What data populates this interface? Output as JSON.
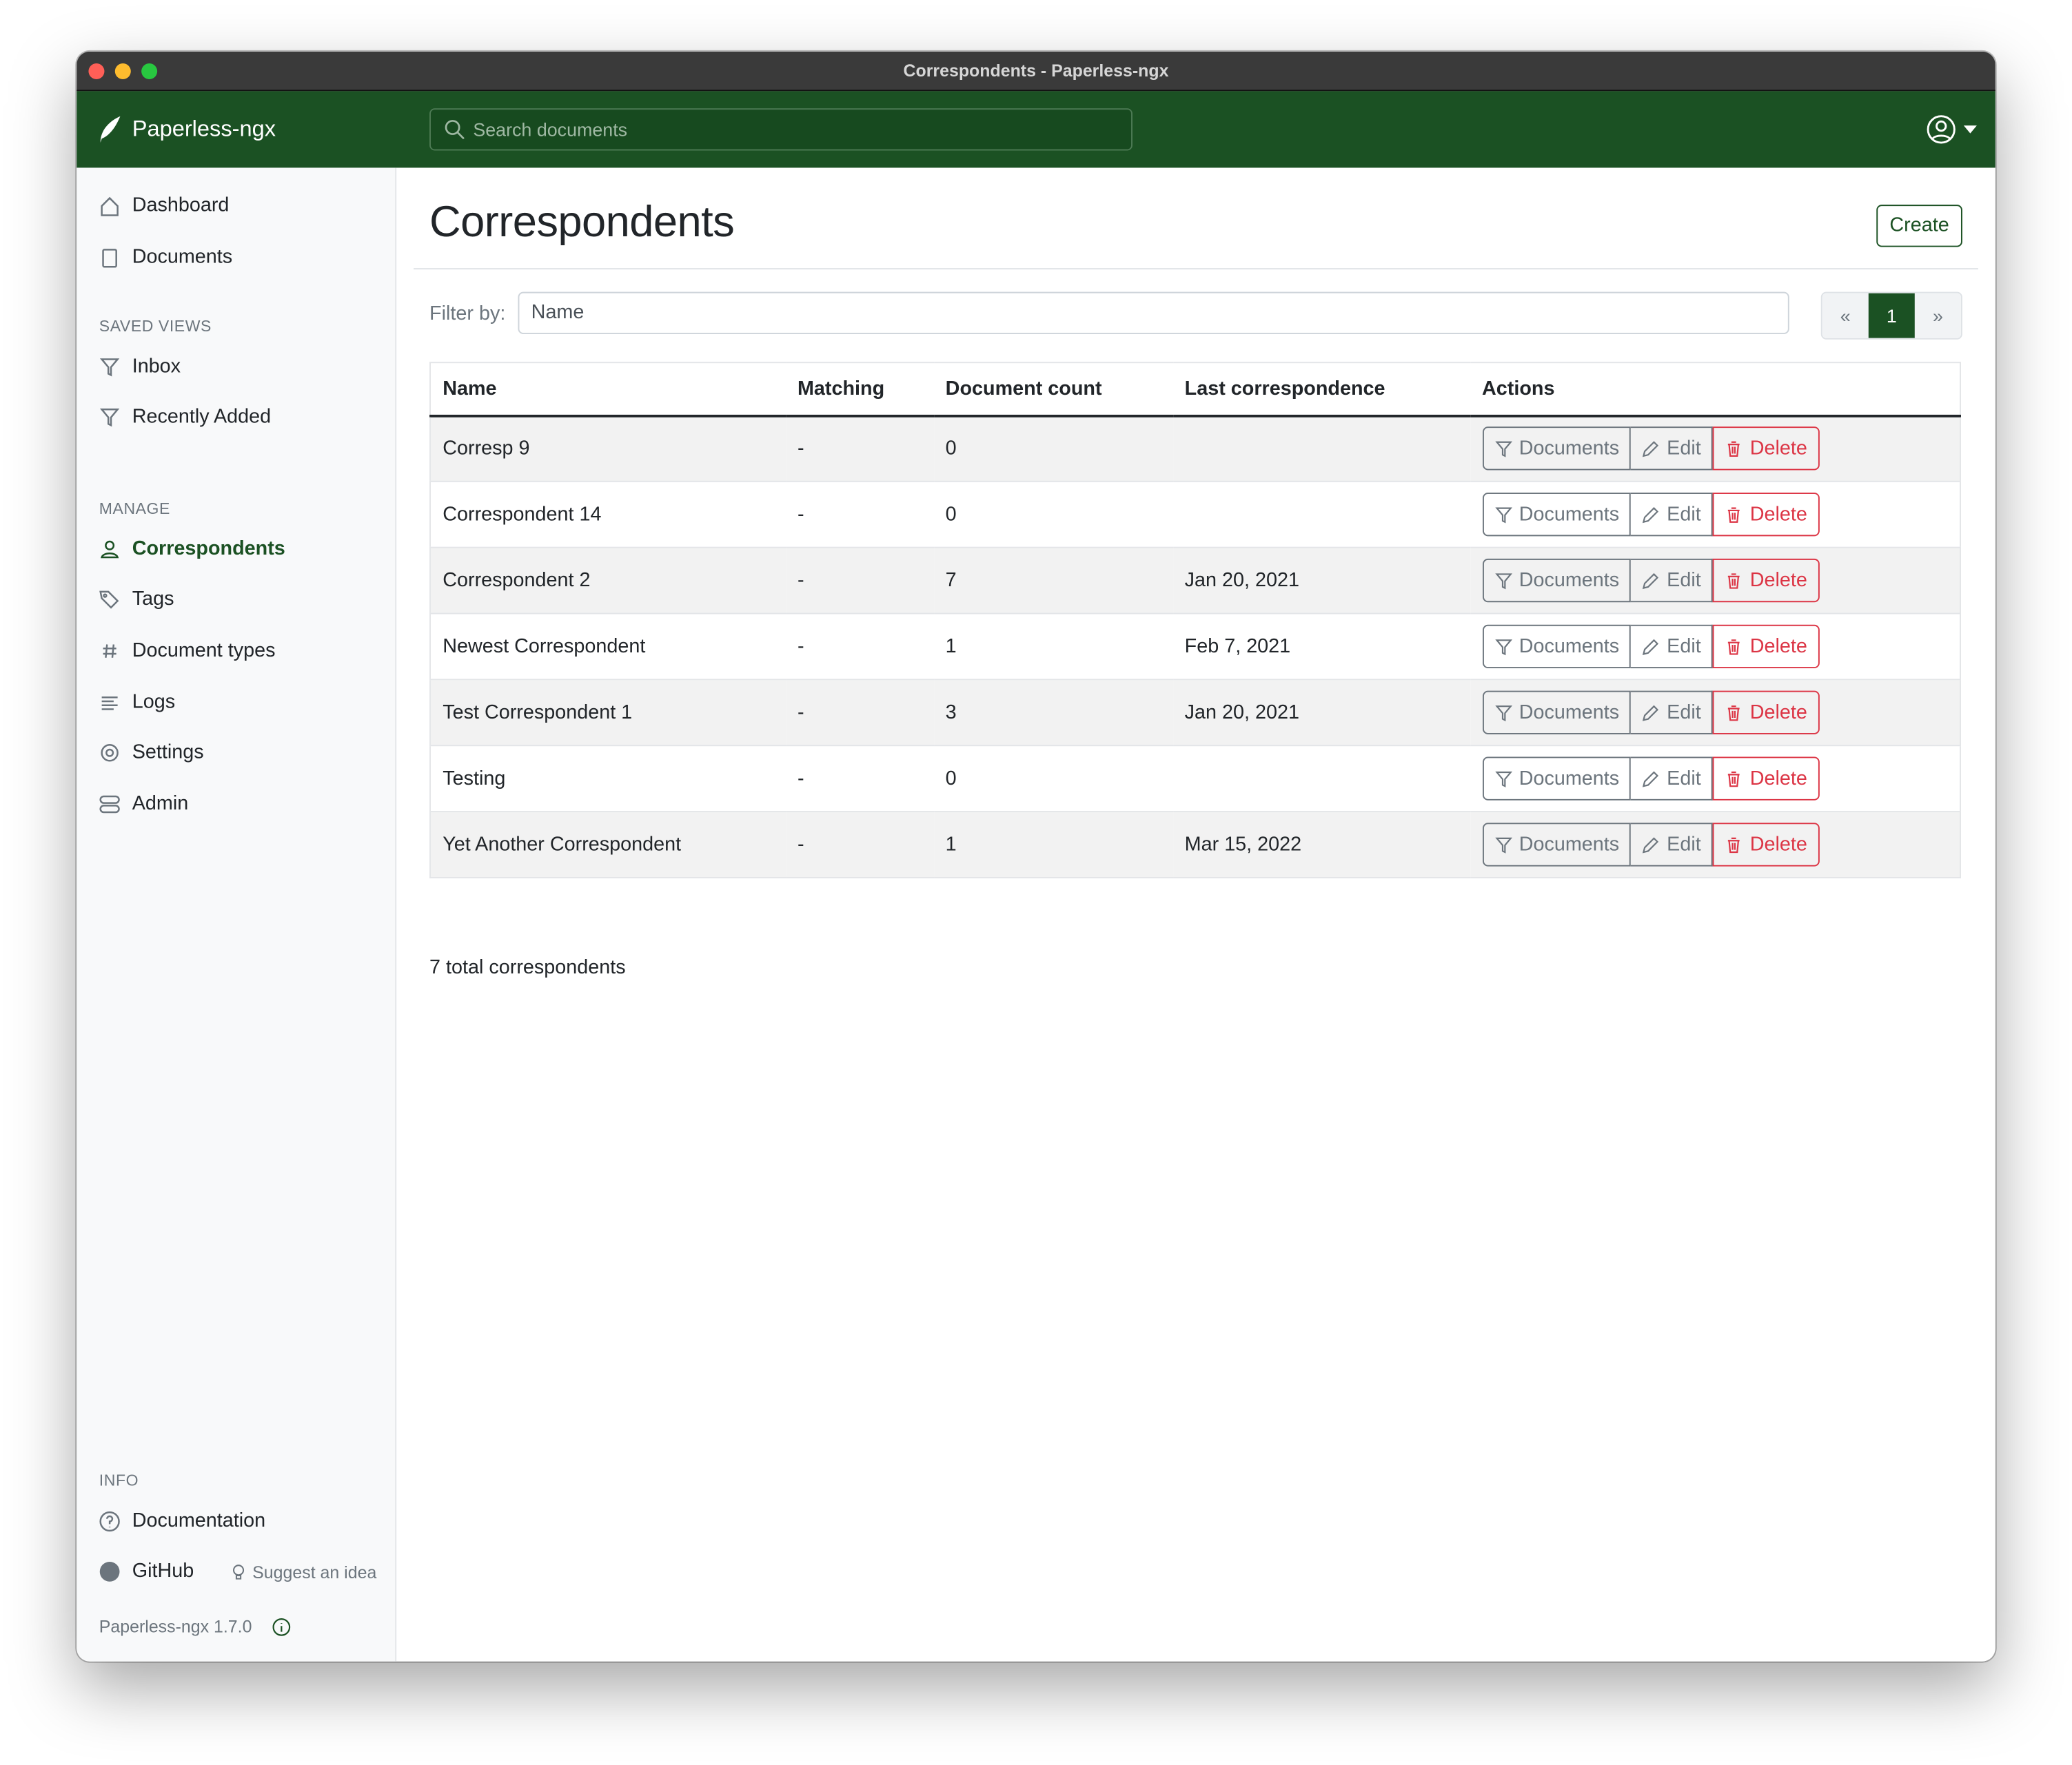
{
  "window": {
    "title": "Correspondents - Paperless-ngx"
  },
  "navbar": {
    "brand": "Paperless-ngx",
    "search_placeholder": "Search documents",
    "accent": "#1b5123"
  },
  "sidebar": {
    "main": [
      {
        "label": "Dashboard",
        "icon": "house-icon"
      },
      {
        "label": "Documents",
        "icon": "files-icon"
      }
    ],
    "saved_views_header": "SAVED VIEWS",
    "saved_views": [
      {
        "label": "Inbox",
        "icon": "funnel-icon"
      },
      {
        "label": "Recently Added",
        "icon": "funnel-icon"
      }
    ],
    "manage_header": "MANAGE",
    "manage": [
      {
        "label": "Correspondents",
        "icon": "person-icon",
        "active": true
      },
      {
        "label": "Tags",
        "icon": "tags-icon"
      },
      {
        "label": "Document types",
        "icon": "hash-icon"
      },
      {
        "label": "Logs",
        "icon": "text-left-icon"
      },
      {
        "label": "Settings",
        "icon": "gear-icon"
      },
      {
        "label": "Admin",
        "icon": "toggles-icon"
      }
    ],
    "info_header": "INFO",
    "documentation": "Documentation",
    "github": "GitHub",
    "suggest": "Suggest an idea",
    "version": "Paperless-ngx 1.7.0"
  },
  "main": {
    "title": "Correspondents",
    "create_label": "Create",
    "filter_label": "Filter by:",
    "filter_placeholder": "Name",
    "pager": {
      "prev": "«",
      "current": "1",
      "next": "»"
    },
    "columns": [
      "Name",
      "Matching",
      "Document count",
      "Last correspondence",
      "Actions"
    ],
    "actions": {
      "documents": "Documents",
      "edit": "Edit",
      "delete": "Delete"
    },
    "rows": [
      {
        "name": "Corresp 9",
        "matching": "-",
        "count": "0",
        "last": ""
      },
      {
        "name": "Correspondent 14",
        "matching": "-",
        "count": "0",
        "last": ""
      },
      {
        "name": "Correspondent 2",
        "matching": "-",
        "count": "7",
        "last": "Jan 20, 2021"
      },
      {
        "name": "Newest Correspondent",
        "matching": "-",
        "count": "1",
        "last": "Feb 7, 2021"
      },
      {
        "name": "Test Correspondent 1",
        "matching": "-",
        "count": "3",
        "last": "Jan 20, 2021"
      },
      {
        "name": "Testing",
        "matching": "-",
        "count": "0",
        "last": ""
      },
      {
        "name": "Yet Another Correspondent",
        "matching": "-",
        "count": "1",
        "last": "Mar 15, 2022"
      }
    ],
    "total": "7 total correspondents"
  }
}
